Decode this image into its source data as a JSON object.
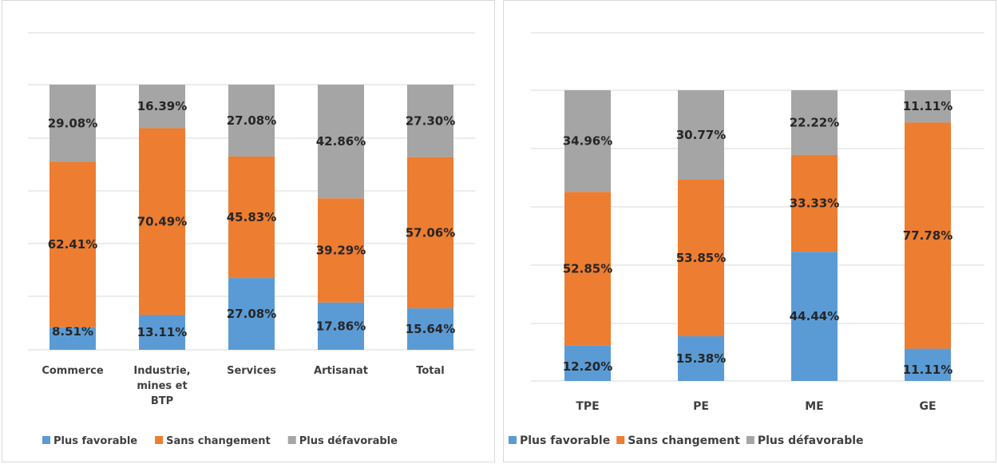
{
  "colors": {
    "favorable": "#5B9BD5",
    "sans_changement": "#ED7D31",
    "defavorable": "#A5A5A5",
    "grid": "#d9d9d9",
    "text": "#262626",
    "axis_text": "#404040"
  },
  "chart_data": [
    {
      "type": "bar",
      "stacked": true,
      "percent": true,
      "categories": [
        "Commerce",
        "Industrie, mines et BTP",
        "Services",
        "Artisanat",
        "Total"
      ],
      "category_lines": [
        [
          "Commerce"
        ],
        [
          "Industrie,",
          "mines et",
          "BTP"
        ],
        [
          "Services"
        ],
        [
          "Artisanat"
        ],
        [
          "Total"
        ]
      ],
      "series": [
        {
          "name": "Plus favorable",
          "values": [
            8.51,
            13.11,
            27.08,
            17.86,
            15.64
          ]
        },
        {
          "name": "Sans changement",
          "values": [
            62.41,
            70.49,
            45.83,
            39.29,
            57.06
          ]
        },
        {
          "name": "Plus défavorable",
          "values": [
            29.08,
            16.39,
            27.08,
            42.86,
            27.3
          ]
        }
      ],
      "labels": [
        [
          "8.51%",
          "13.11%",
          "27.08%",
          "17.86%",
          "15.64%"
        ],
        [
          "62.41%",
          "70.49%",
          "45.83%",
          "39.29%",
          "57.06%"
        ],
        [
          "29.08%",
          "16.39%",
          "27.08%",
          "42.86%",
          "27.30%"
        ]
      ],
      "ylim": [
        0,
        100
      ],
      "grid": true,
      "legend": "bottom"
    },
    {
      "type": "bar",
      "stacked": true,
      "percent": true,
      "categories": [
        "TPE",
        "PE",
        "ME",
        "GE"
      ],
      "category_lines": [
        [
          "TPE"
        ],
        [
          "PE"
        ],
        [
          "ME"
        ],
        [
          "GE"
        ]
      ],
      "series": [
        {
          "name": "Plus favorable",
          "values": [
            12.2,
            15.38,
            44.44,
            11.11
          ]
        },
        {
          "name": "Sans changement",
          "values": [
            52.85,
            53.85,
            33.33,
            77.78
          ]
        },
        {
          "name": "Plus défavorable",
          "values": [
            34.96,
            30.77,
            22.22,
            11.11
          ]
        }
      ],
      "labels": [
        [
          "12.20%",
          "15.38%",
          "44.44%",
          "11.11%"
        ],
        [
          "52.85%",
          "53.85%",
          "33.33%",
          "77.78%"
        ],
        [
          "34.96%",
          "30.77%",
          "22.22%",
          "11.11%"
        ]
      ],
      "ylim": [
        0,
        100
      ],
      "grid": true,
      "legend": "bottom"
    }
  ]
}
